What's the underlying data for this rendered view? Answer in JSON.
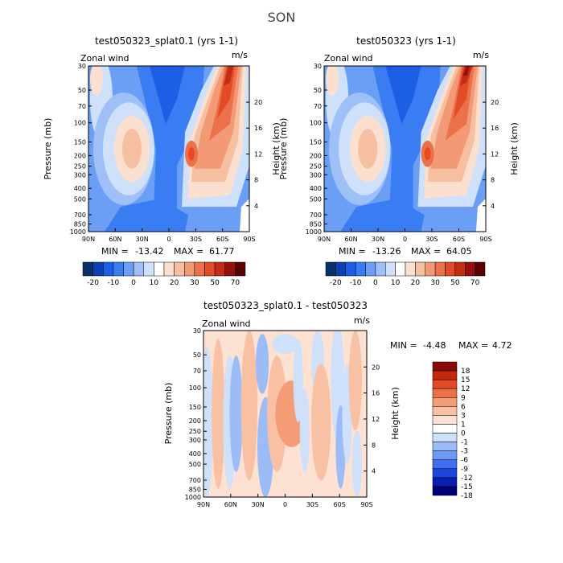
{
  "page_title": "SON",
  "colors": {
    "full": [
      "#08306b",
      "#0c3fb0",
      "#1c5ee6",
      "#3a7cf2",
      "#6a9ff5",
      "#9ec0f7",
      "#cfe1fa",
      "#ffffff",
      "#fbe0d0",
      "#f7bfa2",
      "#f29a75",
      "#ec7049",
      "#e34a26",
      "#c32d13",
      "#96100a",
      "#5a0000"
    ],
    "diff": [
      "#00007a",
      "#0a1fb0",
      "#1f45dc",
      "#3f6ff0",
      "#6d98f5",
      "#9cbcf8",
      "#cfe0fb",
      "#ffffff",
      "#fde1d2",
      "#f9c1a4",
      "#f39c76",
      "#ec7049",
      "#e14a25",
      "#c2290d",
      "#8c0a05"
    ]
  },
  "panels": [
    {
      "id": "top-left",
      "title": "test050323_splat0.1 (yrs 1-1)",
      "label_left": "Zonal wind",
      "label_right": "m/s",
      "min_label": "MIN = ",
      "min_value": "-13.42",
      "max_label": "MAX = ",
      "max_value": "61.77"
    },
    {
      "id": "top-right",
      "title": "test050323 (yrs 1-1)",
      "label_left": "Zonal wind",
      "label_right": "m/s",
      "min_label": "MIN = ",
      "min_value": "-13.26",
      "max_label": "MAX = ",
      "max_value": "64.05"
    },
    {
      "id": "bottom",
      "title": "test050323_splat0.1 - test050323",
      "label_left": "Zonal wind",
      "label_right": "m/s",
      "min_label": "MIN = ",
      "min_value": "-4.48",
      "max_label": "MAX = ",
      "max_value": "4.72"
    }
  ],
  "chart_data": [
    {
      "type": "heatmap",
      "title": "test050323_splat0.1 (yrs 1-1)",
      "xlabel": "",
      "ylabel": "Pressure (mb)",
      "y2label": "Height (km)",
      "x_ticks": [
        "90N",
        "60N",
        "30N",
        "0",
        "30S",
        "60S",
        "90S"
      ],
      "y_ticks": [
        "30",
        "50",
        "70",
        "100",
        "150",
        "200",
        "250",
        "300",
        "400",
        "500",
        "700",
        "850",
        "1000"
      ],
      "y2_ticks": [
        "20",
        "16",
        "12",
        "8",
        "4"
      ],
      "colorbar_labels": [
        "-20",
        "-10",
        "0",
        "10",
        "20",
        "30",
        "50",
        "70"
      ],
      "min": -13.42,
      "max": 61.77,
      "units": "m/s"
    },
    {
      "type": "heatmap",
      "title": "test050323 (yrs 1-1)",
      "xlabel": "",
      "ylabel": "Pressure (mb)",
      "y2label": "Height (km)",
      "x_ticks": [
        "90N",
        "60N",
        "30N",
        "0",
        "30S",
        "60S",
        "90S"
      ],
      "y_ticks": [
        "30",
        "50",
        "70",
        "100",
        "150",
        "200",
        "250",
        "300",
        "400",
        "500",
        "700",
        "850",
        "1000"
      ],
      "y2_ticks": [
        "20",
        "16",
        "12",
        "8",
        "4"
      ],
      "colorbar_labels": [
        "-20",
        "-10",
        "0",
        "10",
        "20",
        "30",
        "50",
        "70"
      ],
      "min": -13.26,
      "max": 64.05,
      "units": "m/s"
    },
    {
      "type": "heatmap",
      "title": "test050323_splat0.1 - test050323",
      "xlabel": "",
      "ylabel": "Pressure (mb)",
      "y2label": "Height (km)",
      "x_ticks": [
        "90N",
        "60N",
        "30N",
        "0",
        "30S",
        "60S",
        "90S"
      ],
      "y_ticks": [
        "30",
        "50",
        "70",
        "100",
        "150",
        "200",
        "250",
        "300",
        "400",
        "500",
        "700",
        "850",
        "1000"
      ],
      "y2_ticks": [
        "20",
        "16",
        "12",
        "8",
        "4"
      ],
      "colorbar_labels": [
        "18",
        "15",
        "12",
        "9",
        "6",
        "3",
        "1",
        "0",
        "-1",
        "-3",
        "-6",
        "-9",
        "-12",
        "-15",
        "-18"
      ],
      "min": -4.48,
      "max": 4.72,
      "units": "m/s"
    }
  ]
}
